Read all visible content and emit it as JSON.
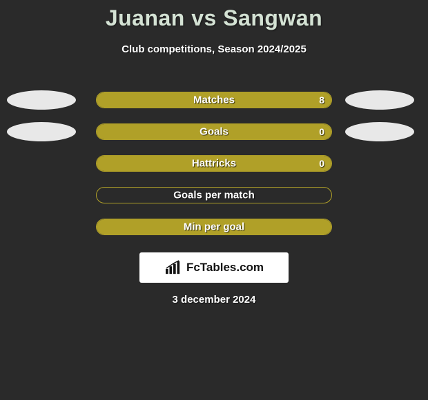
{
  "title": "Juanan vs Sangwan",
  "subtitle": "Club competitions, Season 2024/2025",
  "date": "3 december 2024",
  "logo_text": "FcTables.com",
  "bar_style": {
    "border_color": "#b0a028",
    "fill_color": "#b0a028",
    "text_color": "#ffffff"
  },
  "ellipse_color": "#e8e8e8",
  "background_color": "#2a2a2a",
  "rows": [
    {
      "label": "Matches",
      "value": "8",
      "fill_pct": 100,
      "show_value": true,
      "left_ellipse": true,
      "right_ellipse": true
    },
    {
      "label": "Goals",
      "value": "0",
      "fill_pct": 100,
      "show_value": true,
      "left_ellipse": true,
      "right_ellipse": true
    },
    {
      "label": "Hattricks",
      "value": "0",
      "fill_pct": 100,
      "show_value": true,
      "left_ellipse": false,
      "right_ellipse": false
    },
    {
      "label": "Goals per match",
      "value": "",
      "fill_pct": 0,
      "show_value": false,
      "left_ellipse": false,
      "right_ellipse": false
    },
    {
      "label": "Min per goal",
      "value": "",
      "fill_pct": 100,
      "show_value": false,
      "left_ellipse": false,
      "right_ellipse": false
    }
  ]
}
